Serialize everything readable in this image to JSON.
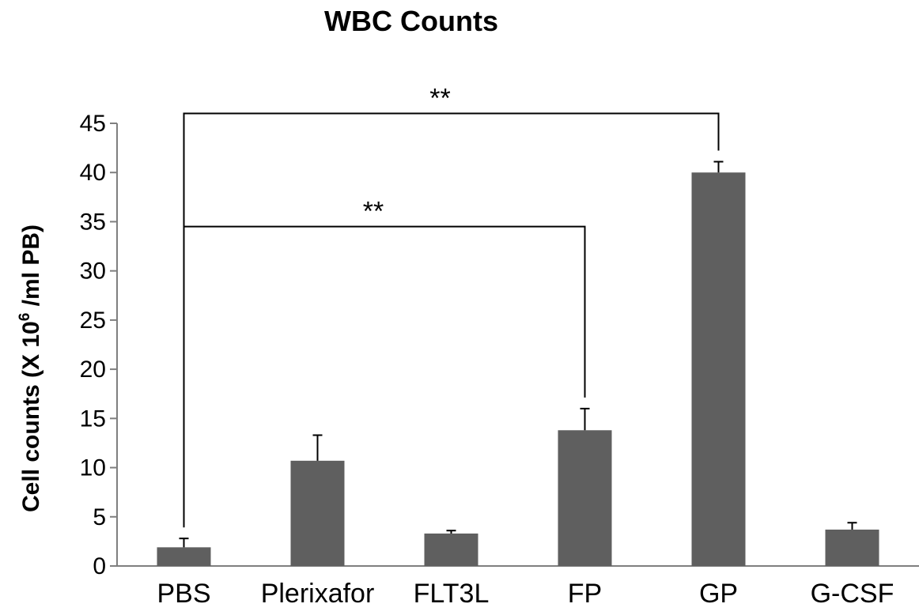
{
  "chart_data": {
    "type": "bar",
    "title": "WBC Counts",
    "ylabel_main": "Cell counts  (X 10",
    "ylabel_sup": "6",
    "ylabel_tail": " /ml PB)",
    "xlabel": "",
    "categories": [
      "PBS",
      "Plerixafor",
      "FLT3L",
      "FP",
      "GP",
      "G-CSF"
    ],
    "values": [
      1.9,
      10.7,
      3.3,
      13.8,
      40.0,
      3.7
    ],
    "errors": [
      0.9,
      2.6,
      0.3,
      2.2,
      1.1,
      0.7
    ],
    "ylim": [
      0,
      45
    ],
    "yticks": [
      0,
      5,
      10,
      15,
      20,
      25,
      30,
      35,
      40,
      45
    ],
    "bar_color": "#5f5f5f",
    "grid": false,
    "legend": "none",
    "significance": [
      {
        "from": "PBS",
        "to": "GP",
        "label": "**",
        "level": 46
      },
      {
        "from": "PBS",
        "to": "FP",
        "label": "**",
        "level": 34.5
      }
    ]
  }
}
